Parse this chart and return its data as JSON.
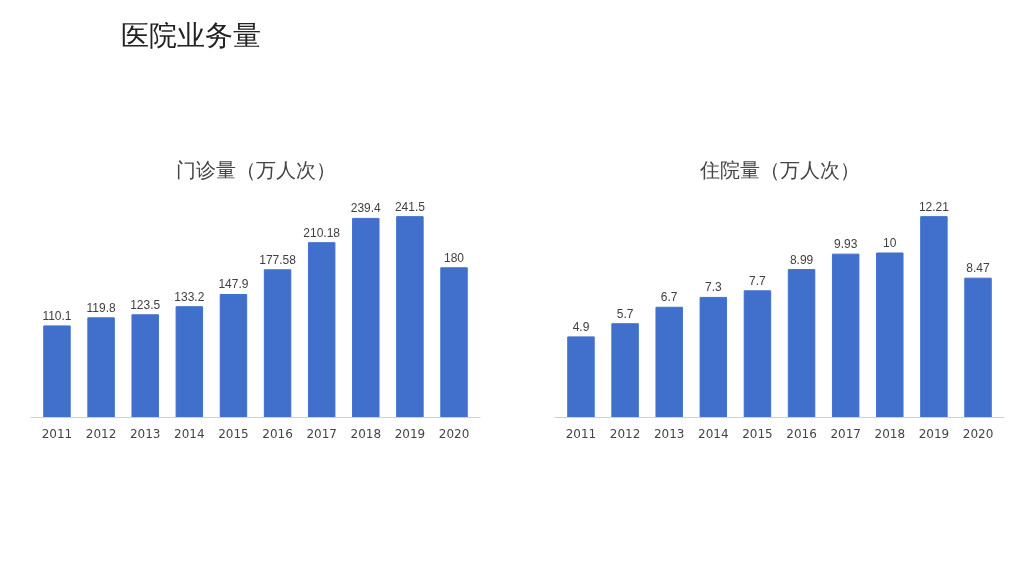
{
  "chart_data": [
    {
      "type": "bar",
      "title": "门诊量（万人次）",
      "annotations": [
        "医院业务量"
      ],
      "categories": [
        "2011",
        "2012",
        "2013",
        "2014",
        "2015",
        "2016",
        "2017",
        "2018",
        "2019",
        "2020"
      ],
      "values": [
        110.1,
        119.8,
        123.5,
        133.2,
        147.9,
        177.58,
        210.18,
        239.4,
        241.5,
        180
      ],
      "color": "#4170cc",
      "data_labels": true,
      "tick_labels": "x",
      "grid": false
    },
    {
      "type": "bar",
      "title": "住院量（万人次）",
      "categories": [
        "2011",
        "2012",
        "2013",
        "2014",
        "2015",
        "2016",
        "2017",
        "2018",
        "2019",
        "2020"
      ],
      "values": [
        4.9,
        5.7,
        6.7,
        7.3,
        7.7,
        8.99,
        9.93,
        10,
        12.21,
        8.47
      ],
      "color": "#4170cc",
      "data_labels": true,
      "tick_labels": "x",
      "grid": false
    }
  ]
}
